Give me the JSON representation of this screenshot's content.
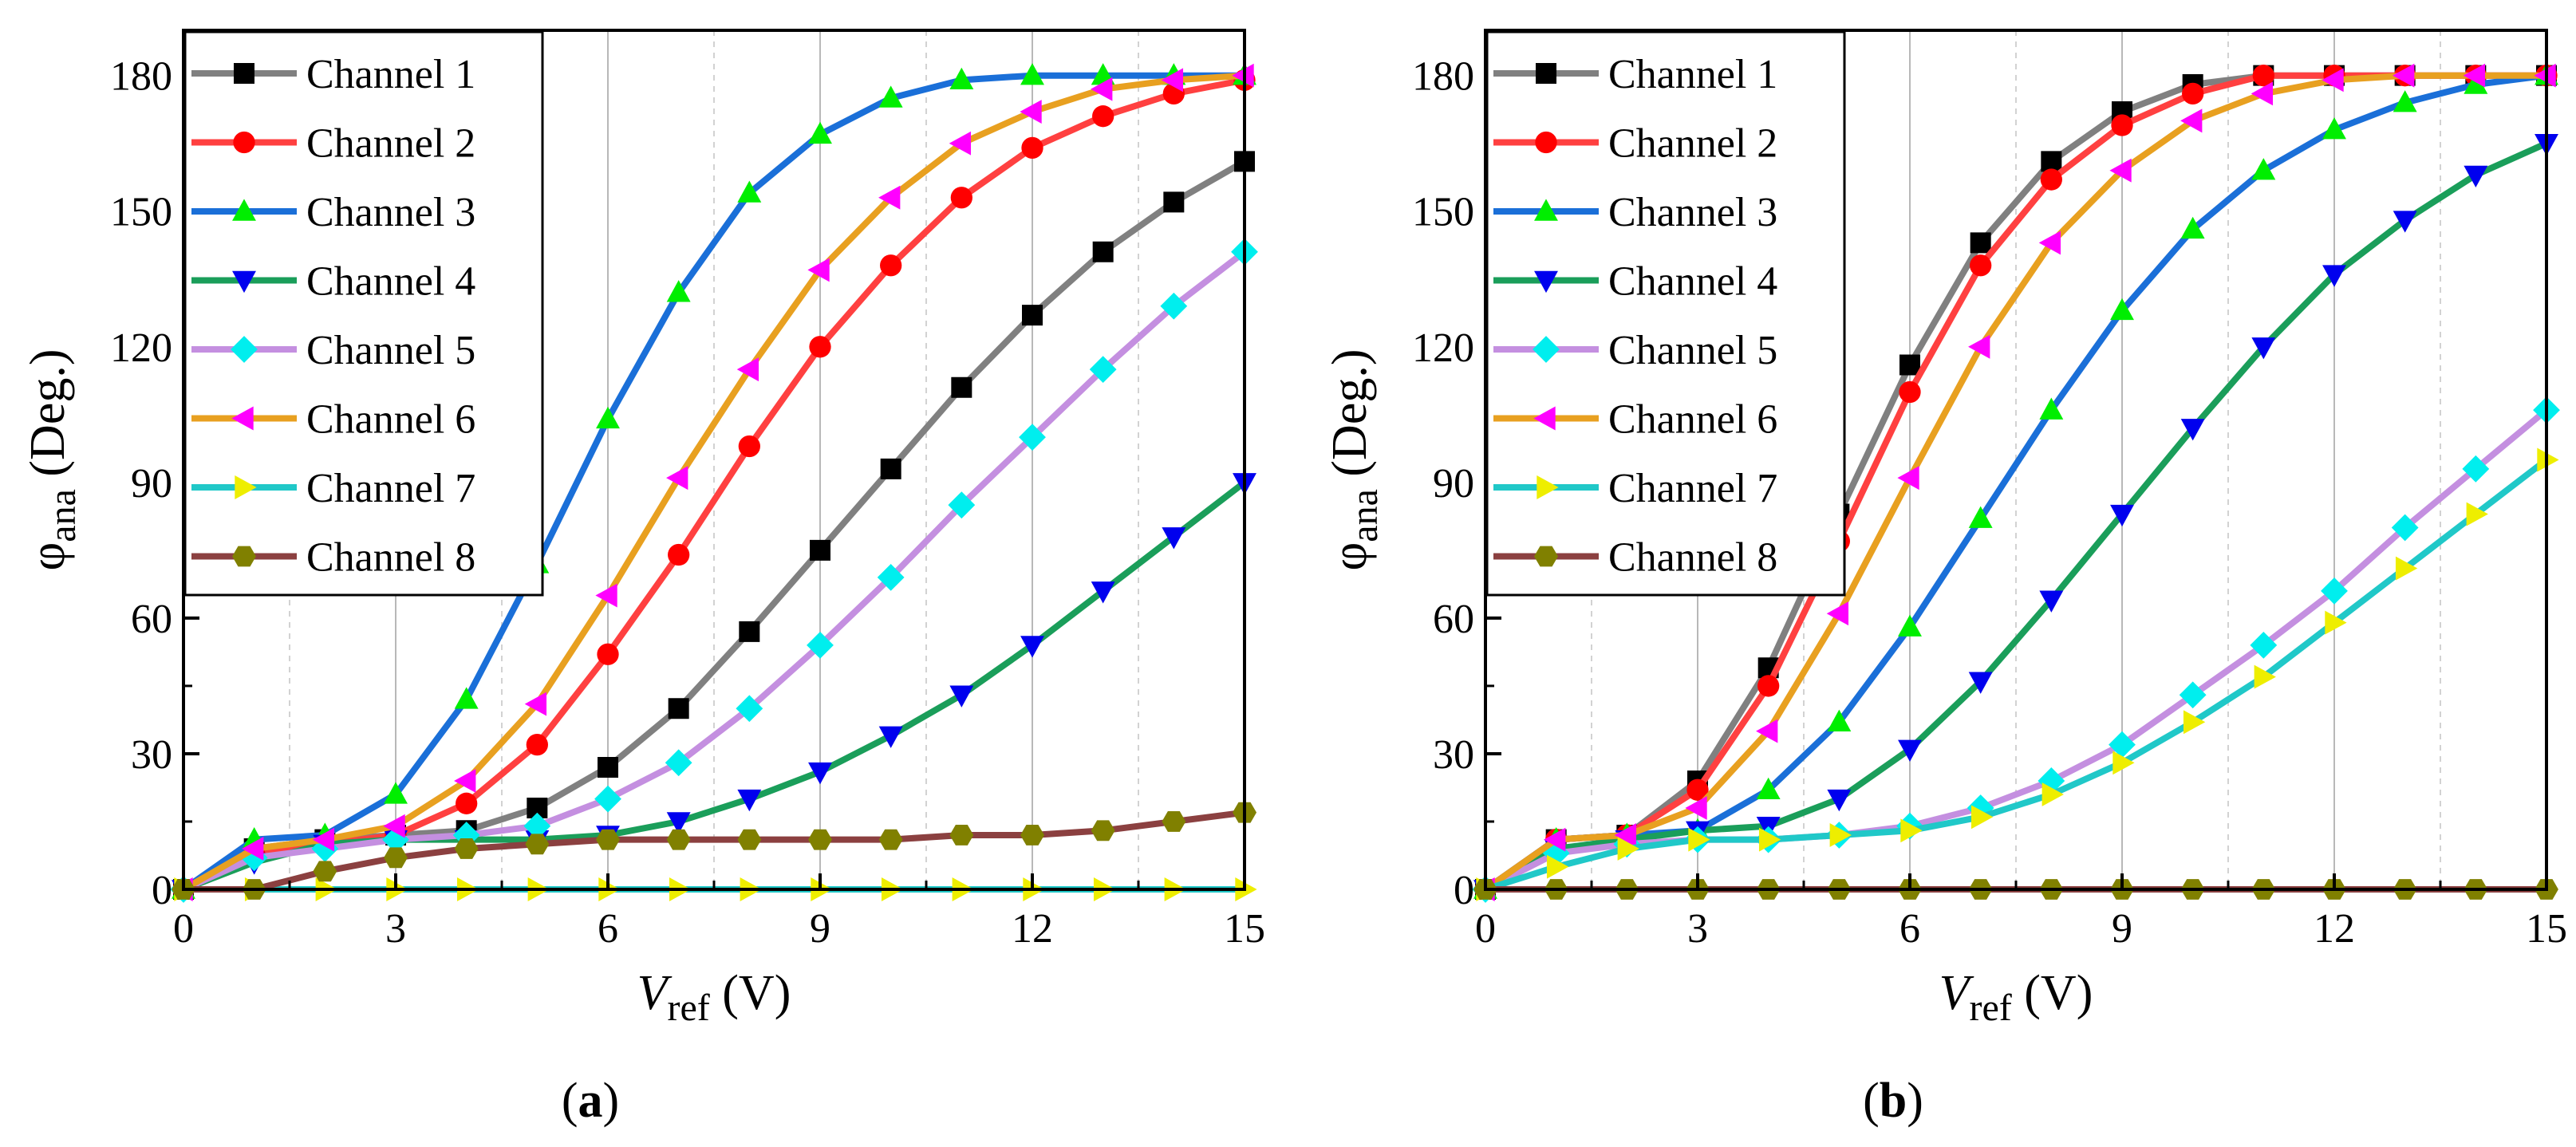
{
  "figure": {
    "captions": [
      {
        "open": "(",
        "letter": "a",
        "close": ")"
      },
      {
        "open": "(",
        "letter": "b",
        "close": ")"
      }
    ]
  },
  "chart_data": [
    {
      "type": "line",
      "panel": "a",
      "title": "",
      "xlabel": {
        "italic": "V",
        "sub": "ref",
        "unit": " (V)"
      },
      "ylabel": {
        "symbol": "φ",
        "sub": "ana",
        "unit": " (Deg.)"
      },
      "xlim": [
        0,
        15
      ],
      "ylim": [
        0,
        190
      ],
      "xticks": [
        0,
        3,
        6,
        9,
        12,
        15
      ],
      "yticks": [
        0,
        30,
        60,
        90,
        120,
        150,
        180
      ],
      "grid": true,
      "legend_position": "top-left",
      "x": [
        0,
        1,
        2,
        3,
        4,
        5,
        6,
        7,
        8,
        9,
        10,
        11,
        12,
        13,
        14,
        15
      ],
      "series": [
        {
          "name": "Channel 1",
          "color": "#000000",
          "line": "#808080",
          "marker": "square",
          "values": [
            0,
            9,
            11,
            12,
            13,
            18,
            27,
            40,
            57,
            75,
            93,
            111,
            127,
            141,
            152,
            161
          ]
        },
        {
          "name": "Channel 2",
          "color": "#ff0000",
          "line": "#ff4040",
          "marker": "circle",
          "values": [
            0,
            8,
            10,
            12,
            19,
            32,
            52,
            74,
            98,
            120,
            138,
            153,
            164,
            171,
            176,
            179
          ]
        },
        {
          "name": "Channel 3",
          "color": "#00ee00",
          "line": "#1a6fd8",
          "marker": "triangle-up",
          "values": [
            0,
            11,
            12,
            21,
            42,
            72,
            104,
            132,
            154,
            167,
            175,
            179,
            180,
            180,
            180,
            180
          ]
        },
        {
          "name": "Channel 4",
          "color": "#0000ee",
          "line": "#1a9e5a",
          "marker": "triangle-down",
          "values": [
            0,
            6,
            10,
            11,
            11,
            11,
            12,
            15,
            20,
            26,
            34,
            43,
            54,
            66,
            78,
            90
          ]
        },
        {
          "name": "Channel 5",
          "color": "#00eeee",
          "line": "#c48fe0",
          "marker": "diamond",
          "values": [
            0,
            7,
            9,
            11,
            12,
            14,
            20,
            28,
            40,
            54,
            69,
            85,
            100,
            115,
            129,
            141
          ]
        },
        {
          "name": "Channel 6",
          "color": "#ff00ff",
          "line": "#e8a020",
          "marker": "triangle-left",
          "values": [
            0,
            9,
            11,
            14,
            24,
            41,
            65,
            91,
            115,
            137,
            153,
            165,
            172,
            177,
            179,
            180
          ]
        },
        {
          "name": "Channel 7",
          "color": "#eeee00",
          "line": "#20c8c8",
          "marker": "triangle-right",
          "values": [
            0,
            0,
            0,
            0,
            0,
            0,
            0,
            0,
            0,
            0,
            0,
            0,
            0,
            0,
            0,
            0
          ]
        },
        {
          "name": "Channel 8",
          "color": "#808000",
          "line": "#8b4040",
          "marker": "hexagon",
          "values": [
            0,
            0,
            4,
            7,
            9,
            10,
            11,
            11,
            11,
            11,
            11,
            12,
            12,
            13,
            15,
            17
          ]
        }
      ]
    },
    {
      "type": "line",
      "panel": "b",
      "title": "",
      "xlabel": {
        "italic": "V",
        "sub": "ref",
        "unit": " (V)"
      },
      "ylabel": {
        "symbol": "φ",
        "sub": "ana",
        "unit": " (Deg.)"
      },
      "xlim": [
        0,
        15
      ],
      "ylim": [
        0,
        190
      ],
      "xticks": [
        0,
        3,
        6,
        9,
        12,
        15
      ],
      "yticks": [
        0,
        30,
        60,
        90,
        120,
        150,
        180
      ],
      "grid": true,
      "legend_position": "top-left",
      "x": [
        0,
        1,
        2,
        3,
        4,
        5,
        6,
        7,
        8,
        9,
        10,
        11,
        12,
        13,
        14,
        15
      ],
      "series": [
        {
          "name": "Channel 1",
          "color": "#000000",
          "line": "#808080",
          "marker": "square",
          "values": [
            0,
            11,
            12,
            24,
            49,
            83,
            116,
            143,
            161,
            172,
            178,
            180,
            180,
            180,
            180,
            180
          ]
        },
        {
          "name": "Channel 2",
          "color": "#ff0000",
          "line": "#ff4040",
          "marker": "circle",
          "values": [
            0,
            11,
            12,
            22,
            45,
            77,
            110,
            138,
            157,
            169,
            176,
            180,
            180,
            180,
            180,
            180
          ]
        },
        {
          "name": "Channel 3",
          "color": "#00ee00",
          "line": "#1a6fd8",
          "marker": "triangle-up",
          "values": [
            0,
            11,
            12,
            13,
            22,
            37,
            58,
            82,
            106,
            128,
            146,
            159,
            168,
            174,
            178,
            180
          ]
        },
        {
          "name": "Channel 4",
          "color": "#0000ee",
          "line": "#1a9e5a",
          "marker": "triangle-down",
          "values": [
            0,
            9,
            11,
            13,
            14,
            20,
            31,
            46,
            64,
            83,
            102,
            120,
            136,
            148,
            158,
            165
          ]
        },
        {
          "name": "Channel 5",
          "color": "#00eeee",
          "line": "#c48fe0",
          "marker": "diamond",
          "values": [
            0,
            8,
            10,
            11,
            11,
            12,
            14,
            18,
            24,
            32,
            43,
            54,
            66,
            80,
            93,
            106
          ]
        },
        {
          "name": "Channel 6",
          "color": "#ff00ff",
          "line": "#e8a020",
          "marker": "triangle-left",
          "values": [
            0,
            11,
            12,
            18,
            35,
            61,
            91,
            120,
            143,
            159,
            170,
            176,
            179,
            180,
            180,
            180
          ]
        },
        {
          "name": "Channel 7",
          "color": "#eeee00",
          "line": "#20c8c8",
          "marker": "triangle-right",
          "values": [
            0,
            5,
            9,
            11,
            11,
            12,
            13,
            16,
            21,
            28,
            37,
            47,
            59,
            71,
            83,
            95
          ]
        },
        {
          "name": "Channel 8",
          "color": "#808000",
          "line": "#8b4040",
          "marker": "hexagon",
          "values": [
            0,
            0,
            0,
            0,
            0,
            0,
            0,
            0,
            0,
            0,
            0,
            0,
            0,
            0,
            0,
            0
          ]
        }
      ]
    }
  ]
}
